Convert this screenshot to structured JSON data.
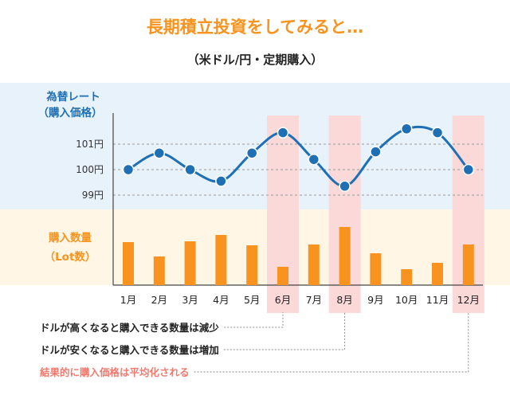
{
  "title": "長期積立投資をしてみると…",
  "subtitle": "（米ドル/円・定期購入）",
  "colors": {
    "rate_band": "#e8f2fb",
    "quantity_band": "#fff6e6",
    "highlight": "#fbd9d9",
    "line": "#1f6fb5",
    "bar": "#f7931e",
    "accent_note": "#f27a6e"
  },
  "chart_data": {
    "type": "line+bar",
    "categories": [
      "1月",
      "2月",
      "3月",
      "4月",
      "5月",
      "6月",
      "7月",
      "8月",
      "9月",
      "10月",
      "11月",
      "12月"
    ],
    "rate": {
      "label_line1": "為替レート",
      "label_line2": "（購入価格）",
      "ticks": [
        {
          "value": 101,
          "label": "101円"
        },
        {
          "value": 100,
          "label": "100円"
        },
        {
          "value": 99,
          "label": "99円"
        }
      ],
      "values": [
        100.0,
        100.65,
        100.0,
        99.55,
        100.65,
        101.45,
        100.4,
        99.35,
        100.7,
        101.6,
        101.45,
        100.0
      ]
    },
    "quantity": {
      "label_line1": "購入数量",
      "label_line2": "（Lot数）",
      "values": [
        54,
        36,
        55,
        63,
        50,
        23,
        51,
        73,
        40,
        20,
        28,
        51
      ]
    },
    "highlight_months": [
      "6月",
      "8月",
      "12月"
    ],
    "annotations": [
      {
        "text": "ドルが高くなると購入できる数量は減少",
        "month": "6月",
        "accent": false
      },
      {
        "text": "ドルが安くなると購入できる数量は増加",
        "month": "8月",
        "accent": false
      },
      {
        "text": "結果的に購入価格は平均化される",
        "month": "12月",
        "accent": true
      }
    ]
  }
}
